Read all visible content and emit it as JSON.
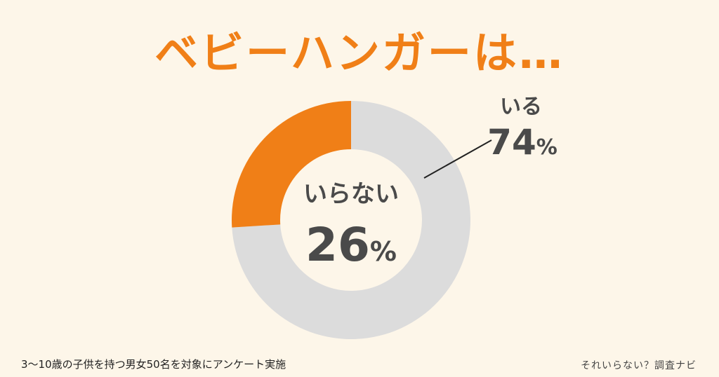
{
  "title": "ベビーハンガーは…",
  "footnote": "3〜10歳の子供を持つ男女50名を対象にアンケート実施",
  "brand": "それいらない？調査ナビ",
  "colors": {
    "background": "#fdf6e9",
    "accent": "#f07f17",
    "neutral": "#dcdcdc",
    "text": "#4a4a4a"
  },
  "chart_data": {
    "type": "pie",
    "variant": "donut",
    "title": "ベビーハンガーは…",
    "categories": [
      "いる",
      "いらない"
    ],
    "values": [
      74,
      26
    ],
    "unit": "%",
    "colors": [
      "#dcdcdc",
      "#f07f17"
    ],
    "labels": [
      {
        "category": "いる",
        "value": "74",
        "unit": "%"
      },
      {
        "category": "いらない",
        "value": "26",
        "unit": "%"
      }
    ]
  }
}
